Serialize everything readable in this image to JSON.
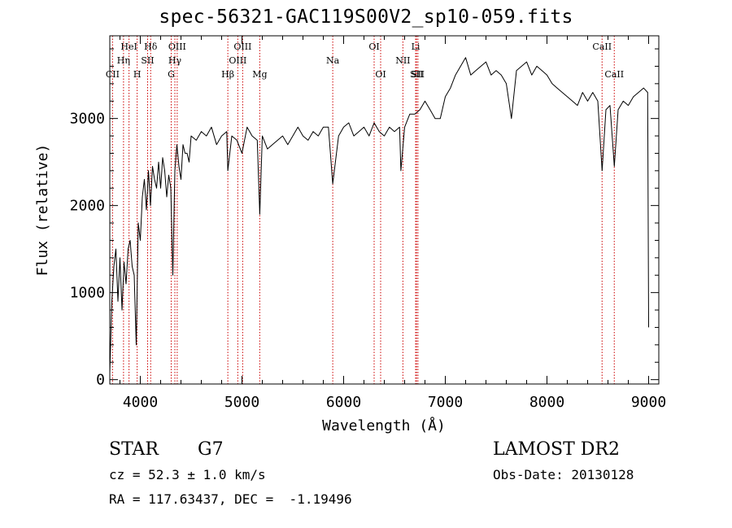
{
  "chart_data": {
    "type": "line",
    "title": "spec-56321-GAC119S00V2_sp10-059.fits",
    "xlabel": "Wavelength (Å)",
    "ylabel": "Flux (relative)",
    "xlim": [
      3700,
      9100
    ],
    "ylim": [
      -50,
      3950
    ],
    "xticks": [
      4000,
      5000,
      6000,
      7000,
      8000,
      9000
    ],
    "yticks": [
      0,
      1000,
      2000,
      3000
    ],
    "grid": false,
    "series": [
      {
        "x": [
          3700,
          3720,
          3740,
          3760,
          3780,
          3800,
          3820,
          3840,
          3860,
          3880,
          3900,
          3920,
          3940,
          3960,
          3980,
          4000,
          4020,
          4040,
          4060,
          4080,
          4100,
          4120,
          4140,
          4160,
          4180,
          4200,
          4220,
          4240,
          4260,
          4280,
          4300,
          4320,
          4340,
          4360,
          4380,
          4400,
          4420,
          4440,
          4460,
          4480,
          4500,
          4550,
          4600,
          4650,
          4700,
          4750,
          4800,
          4850,
          4861,
          4900,
          4950,
          5000,
          5050,
          5100,
          5150,
          5175,
          5200,
          5250,
          5300,
          5350,
          5400,
          5450,
          5500,
          5550,
          5600,
          5650,
          5700,
          5750,
          5800,
          5850,
          5893,
          5950,
          6000,
          6050,
          6100,
          6150,
          6200,
          6250,
          6300,
          6350,
          6400,
          6450,
          6500,
          6550,
          6563,
          6600,
          6650,
          6700,
          6750,
          6800,
          6850,
          6900,
          6950,
          7000,
          7050,
          7100,
          7150,
          7200,
          7250,
          7300,
          7350,
          7400,
          7450,
          7500,
          7550,
          7600,
          7650,
          7700,
          7750,
          7800,
          7850,
          7900,
          7950,
          8000,
          8050,
          8100,
          8150,
          8200,
          8250,
          8300,
          8350,
          8400,
          8450,
          8500,
          8542,
          8580,
          8620,
          8662,
          8700,
          8750,
          8800,
          8850,
          8900,
          8950,
          8990,
          9000
        ],
        "y": [
          80,
          900,
          1300,
          1500,
          900,
          1400,
          800,
          1350,
          1100,
          1500,
          1600,
          1300,
          1200,
          400,
          1800,
          1600,
          2100,
          2300,
          1950,
          2400,
          2000,
          2450,
          2300,
          2200,
          2500,
          2200,
          2550,
          2400,
          2100,
          2350,
          2200,
          1200,
          2400,
          2700,
          2450,
          2300,
          2700,
          2600,
          2600,
          2500,
          2800,
          2750,
          2850,
          2800,
          2900,
          2700,
          2800,
          2850,
          2400,
          2800,
          2750,
          2600,
          2900,
          2800,
          2750,
          1900,
          2800,
          2650,
          2700,
          2750,
          2800,
          2700,
          2800,
          2900,
          2800,
          2750,
          2850,
          2800,
          2900,
          2900,
          2250,
          2800,
          2900,
          2950,
          2800,
          2850,
          2900,
          2800,
          2950,
          2850,
          2800,
          2900,
          2850,
          2900,
          2400,
          2900,
          3050,
          3050,
          3100,
          3200,
          3100,
          3000,
          3000,
          3250,
          3350,
          3500,
          3600,
          3700,
          3500,
          3550,
          3600,
          3650,
          3500,
          3550,
          3500,
          3400,
          3000,
          3550,
          3600,
          3650,
          3500,
          3600,
          3550,
          3500,
          3400,
          3350,
          3300,
          3250,
          3200,
          3150,
          3300,
          3200,
          3300,
          3200,
          2400,
          3100,
          3150,
          2450,
          3100,
          3200,
          3150,
          3250,
          3300,
          3350,
          3300,
          600
        ]
      }
    ],
    "lines": [
      {
        "label": "CII",
        "x": 3727
      },
      {
        "label": "Hη",
        "x": 3835
      },
      {
        "label": "HeI",
        "x": 3889
      },
      {
        "label": "H",
        "x": 3969
      },
      {
        "label": "SII",
        "x": 4072
      },
      {
        "label": "Hδ",
        "x": 4102
      },
      {
        "label": "G",
        "x": 4304
      },
      {
        "label": "Hγ",
        "x": 4340
      },
      {
        "label": "OIII",
        "x": 4363
      },
      {
        "label": "Hβ",
        "x": 4861
      },
      {
        "label": "OIII",
        "x": 4959
      },
      {
        "label": "OIII",
        "x": 5007
      },
      {
        "label": "Mg",
        "x": 5175
      },
      {
        "label": "Na",
        "x": 5893
      },
      {
        "label": "OI",
        "x": 6300
      },
      {
        "label": "OI",
        "x": 6364
      },
      {
        "label": "NII",
        "x": 6583
      },
      {
        "label": "Li",
        "x": 6708
      },
      {
        "label": "SII",
        "x": 6717
      },
      {
        "label": "SII",
        "x": 6731
      },
      {
        "label": "CaII",
        "x": 8542
      },
      {
        "label": "CaII",
        "x": 8662
      }
    ],
    "line_color": "#cc0000",
    "trace_color": "#000000"
  },
  "info": {
    "object_class": "STAR",
    "subclass": "G7",
    "redshift": "cz = 52.3 ± 1.0 km/s",
    "coords": "RA = 117.63437, DEC =  -1.19496",
    "survey": "LAMOST DR2",
    "obs_date": "Obs-Date: 20130128"
  }
}
